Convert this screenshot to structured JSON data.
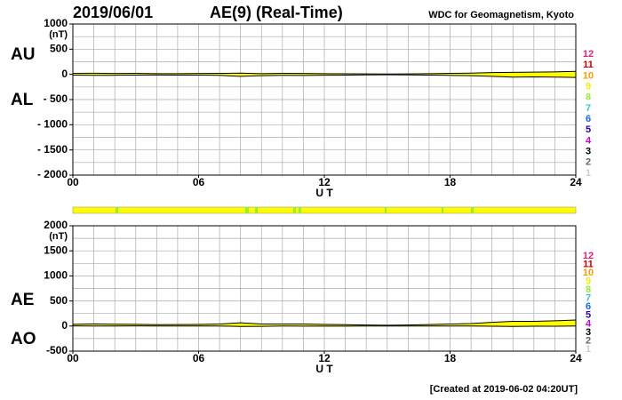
{
  "page": {
    "date": "2019/06/01",
    "title": "AE(9)  (Real-Time)",
    "source": "WDC for Geomagnetism, Kyoto",
    "footer": "[Created at 2019-06-02 04:20UT]"
  },
  "stations": [
    {
      "name": "12",
      "color": "#e8207a"
    },
    {
      "name": "11",
      "color": "#cc0000"
    },
    {
      "name": "10",
      "color": "#ff9900"
    },
    {
      "name": "9",
      "color": "#f0f000"
    },
    {
      "name": "8",
      "color": "#99ee33"
    },
    {
      "name": "7",
      "color": "#33cccc"
    },
    {
      "name": "6",
      "color": "#1166ff"
    },
    {
      "name": "5",
      "color": "#2a00aa"
    },
    {
      "name": "4",
      "color": "#cc00cc"
    },
    {
      "name": "3",
      "color": "#000000"
    },
    {
      "name": "2",
      "color": "#666666"
    },
    {
      "name": "1",
      "color": "#cccccc"
    }
  ],
  "chart_data": [
    {
      "type": "line",
      "fill": "#ffff00",
      "x": [
        0,
        1,
        2,
        3,
        4,
        5,
        6,
        7,
        8,
        9,
        10,
        11,
        12,
        13,
        14,
        15,
        16,
        17,
        18,
        19,
        20,
        21,
        22,
        23,
        24
      ],
      "series": [
        {
          "name": "AU",
          "color": "#000000",
          "values": [
            20,
            22,
            18,
            20,
            15,
            15,
            18,
            20,
            25,
            15,
            20,
            18,
            15,
            12,
            10,
            8,
            10,
            15,
            20,
            25,
            35,
            40,
            45,
            50,
            60
          ]
        },
        {
          "name": "AL",
          "color": "#000000",
          "values": [
            -15,
            -20,
            -18,
            -15,
            -12,
            -15,
            -15,
            -20,
            -40,
            -25,
            -20,
            -22,
            -18,
            -15,
            -10,
            -8,
            -10,
            -15,
            -20,
            -25,
            -40,
            -55,
            -50,
            -55,
            -60
          ]
        }
      ],
      "xlim": [
        0,
        24
      ],
      "xticks": [
        {
          "value": 0,
          "label": "00"
        },
        {
          "value": 6,
          "label": "06"
        },
        12,
        18,
        24
      ],
      "xlabel": "U T",
      "ylim": [
        -2000,
        1000
      ],
      "yticks": [
        1000,
        500,
        0,
        {
          "value": -500,
          "label": "- 500"
        },
        {
          "value": -1000,
          "label": "- 1000"
        },
        {
          "value": -1500,
          "label": "- 1500"
        },
        {
          "value": -2000,
          "label": "- 2000"
        }
      ],
      "yunit": "(nT)",
      "grid": true,
      "x_grid_step": 1,
      "y_grid_step": 250
    },
    {
      "type": "line",
      "fill": "#ffff00",
      "x": [
        0,
        1,
        2,
        3,
        4,
        5,
        6,
        7,
        8,
        9,
        10,
        11,
        12,
        13,
        14,
        15,
        16,
        17,
        18,
        19,
        20,
        21,
        22,
        23,
        24
      ],
      "series": [
        {
          "name": "AE",
          "color": "#000000",
          "values": [
            35,
            42,
            36,
            35,
            27,
            30,
            33,
            40,
            65,
            40,
            40,
            40,
            33,
            27,
            20,
            16,
            20,
            30,
            40,
            50,
            75,
            95,
            95,
            105,
            120
          ]
        },
        {
          "name": "AO",
          "color": "#000000",
          "values": [
            2.5,
            1,
            0,
            2.5,
            1.5,
            0,
            1.5,
            0,
            -7.5,
            -5,
            0,
            -2,
            -1.5,
            -1.5,
            0,
            0,
            0,
            0,
            0,
            0,
            -2.5,
            -7.5,
            -2.5,
            -2.5,
            0
          ]
        }
      ],
      "xlim": [
        0,
        24
      ],
      "xticks": [
        {
          "value": 0,
          "label": "00"
        },
        {
          "value": 6,
          "label": "06"
        },
        12,
        18,
        24
      ],
      "xlabel": "U T",
      "ylim": [
        -500,
        2000
      ],
      "yticks": [
        2000,
        1500,
        1000,
        500,
        0,
        {
          "value": -500,
          "label": "-500"
        }
      ],
      "yunit": "(nT)",
      "grid": true,
      "x_grid_step": 1,
      "y_grid_step": 250
    }
  ]
}
